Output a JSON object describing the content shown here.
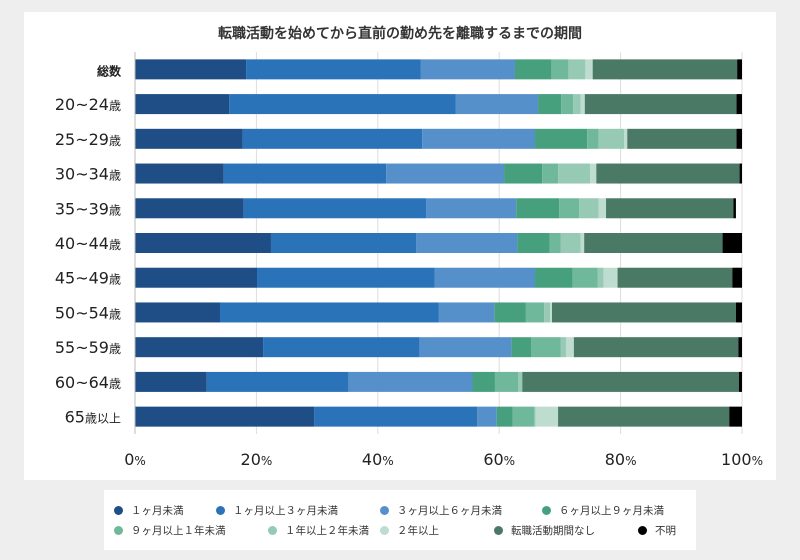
{
  "chart_data": {
    "type": "bar",
    "orientation": "horizontal",
    "stacked": true,
    "title": "転職活動を始めてから直前の勤め先を離職するまでの期間",
    "categories": [
      "総数",
      "20~24歳",
      "25~29歳",
      "30~34歳",
      "35~39歳",
      "40~44歳",
      "45~49歳",
      "50~54歳",
      "55~59歳",
      "60~64歳",
      "65歳以上"
    ],
    "xlim": [
      0,
      100
    ],
    "xticks": [
      "0%",
      "20%",
      "40%",
      "60%",
      "80%",
      "100%"
    ],
    "grid": true,
    "legend_position": "bottom",
    "series": [
      {
        "name": "１ヶ月未満",
        "color": "#1e4e85",
        "values": [
          18.3,
          15.5,
          17.7,
          14.6,
          17.9,
          22.4,
          20.1,
          14.0,
          21.1,
          11.8,
          29.5
        ]
      },
      {
        "name": "１ヶ月以上３ヶ月未満",
        "color": "#2b73b9",
        "values": [
          28.8,
          37.3,
          29.6,
          26.8,
          30.1,
          23.9,
          29.3,
          36.0,
          25.8,
          23.4,
          26.9
        ]
      },
      {
        "name": "３ヶ月以上６ヶ月未満",
        "color": "#5590cb",
        "values": [
          15.5,
          13.6,
          18.6,
          19.4,
          14.8,
          16.7,
          16.5,
          9.2,
          15.1,
          20.4,
          3.2
        ]
      },
      {
        "name": "６ヶ月以上９ヶ月未満",
        "color": "#46a07e",
        "values": [
          6.0,
          3.8,
          8.6,
          6.3,
          7.1,
          5.3,
          6.2,
          5.2,
          3.3,
          3.7,
          2.6
        ]
      },
      {
        "name": "９ヶ月以上１年未満",
        "color": "#70b89b",
        "values": [
          2.8,
          2.0,
          1.9,
          2.6,
          3.3,
          1.8,
          4.1,
          3.0,
          4.8,
          3.8,
          3.6
        ]
      },
      {
        "name": "１年以上２年未満",
        "color": "#96cab5",
        "values": [
          2.8,
          1.2,
          4.2,
          5.3,
          3.2,
          3.3,
          1.0,
          1.0,
          0.9,
          0.7,
          0.2
        ]
      },
      {
        "name": "２年以上",
        "color": "#bfdcd1",
        "values": [
          1.2,
          0.7,
          0.5,
          1.0,
          1.2,
          0.6,
          2.3,
          0.3,
          1.3,
          0.0,
          3.7
        ]
      },
      {
        "name": "転職活動期間なし",
        "color": "#4a7a65",
        "values": [
          23.8,
          25.0,
          18.0,
          23.6,
          21.0,
          22.8,
          18.9,
          30.3,
          27.1,
          35.7,
          28.2
        ]
      },
      {
        "name": "不明",
        "color": "#000000",
        "values": [
          0.8,
          0.9,
          0.9,
          0.4,
          0.4,
          3.2,
          1.6,
          1.0,
          0.6,
          0.5,
          2.1
        ]
      }
    ]
  }
}
